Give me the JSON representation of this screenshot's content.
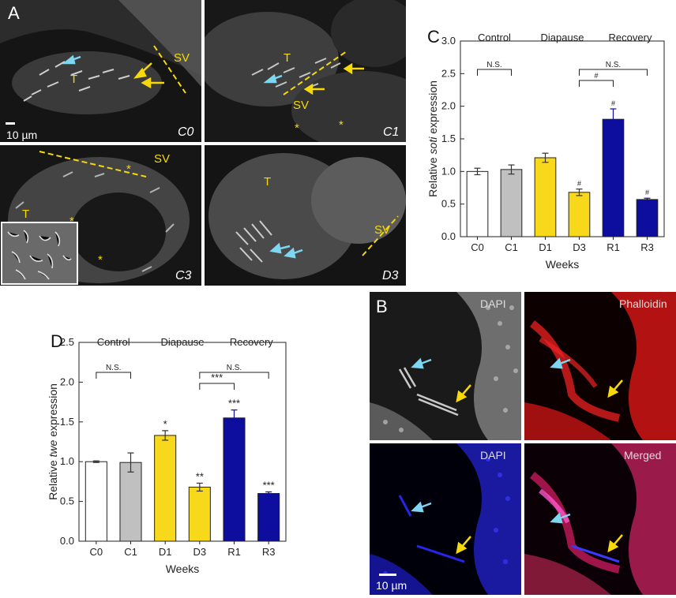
{
  "panel_A": {
    "label": "A",
    "scale_bar": "10 µm",
    "subpanels": [
      {
        "name": "C0",
        "labels": [
          "T",
          "SV"
        ]
      },
      {
        "name": "C1",
        "labels": [
          "T",
          "SV",
          "*",
          "*"
        ]
      },
      {
        "name": "C3",
        "labels": [
          "SV",
          "T",
          "*",
          "*",
          "*"
        ]
      },
      {
        "name": "D3",
        "labels": [
          "T",
          "SV"
        ]
      }
    ]
  },
  "panel_B": {
    "label": "B",
    "channels": [
      "DAPI",
      "Phalloidin",
      "DAPI",
      "Merged"
    ],
    "scale_bar": "10 µm"
  },
  "colors": {
    "control_c0": "#ffffff",
    "control_c1": "#c0c0c0",
    "diapause": "#f8d81b",
    "recovery": "#0d0d9e",
    "annotation_yellow": "#f5d90a",
    "arrow_cyan": "#7fd6f0"
  },
  "chart_data": [
    {
      "panel": "C",
      "type": "bar",
      "ylabel_prefix": "Relative ",
      "ylabel_gene": "soti",
      "ylabel_suffix": " expression",
      "xlabel": "Weeks",
      "ylim": [
        0.0,
        3.0
      ],
      "yticks": [
        "0.0",
        "0.5",
        "1.0",
        "1.5",
        "2.0",
        "2.5",
        "3.0"
      ],
      "groups": [
        "Control",
        "Diapause",
        "Recovery"
      ],
      "categories": [
        "C0",
        "C1",
        "D1",
        "D3",
        "R1",
        "R3"
      ],
      "values": [
        1.0,
        1.03,
        1.21,
        0.68,
        1.8,
        0.57
      ],
      "errors": [
        0.05,
        0.07,
        0.07,
        0.05,
        0.16,
        0.02
      ],
      "significance": [
        "",
        "",
        "",
        "#",
        "#",
        "#"
      ],
      "brackets": [
        {
          "from": 0,
          "to": 1,
          "label": "N.S."
        },
        {
          "from": 3,
          "to": 5,
          "label": "N.S."
        },
        {
          "from": 3,
          "to": 4,
          "label": "#"
        }
      ]
    },
    {
      "panel": "D",
      "type": "bar",
      "ylabel_prefix": "Relative ",
      "ylabel_gene": "twe",
      "ylabel_suffix": " expression",
      "xlabel": "Weeks",
      "ylim": [
        0.0,
        2.5
      ],
      "yticks": [
        "0.0",
        "0.5",
        "1.0",
        "1.5",
        "2.0",
        "2.5"
      ],
      "groups": [
        "Control",
        "Diapause",
        "Recovery"
      ],
      "categories": [
        "C0",
        "C1",
        "D1",
        "D3",
        "R1",
        "R3"
      ],
      "values": [
        1.0,
        0.99,
        1.33,
        0.68,
        1.55,
        0.6
      ],
      "errors": [
        0.01,
        0.12,
        0.06,
        0.05,
        0.1,
        0.02
      ],
      "significance": [
        "",
        "",
        "*",
        "**",
        "***",
        "***"
      ],
      "brackets": [
        {
          "from": 0,
          "to": 1,
          "label": "N.S."
        },
        {
          "from": 3,
          "to": 5,
          "label": "N.S."
        },
        {
          "from": 3,
          "to": 4,
          "label": "***"
        }
      ]
    }
  ]
}
